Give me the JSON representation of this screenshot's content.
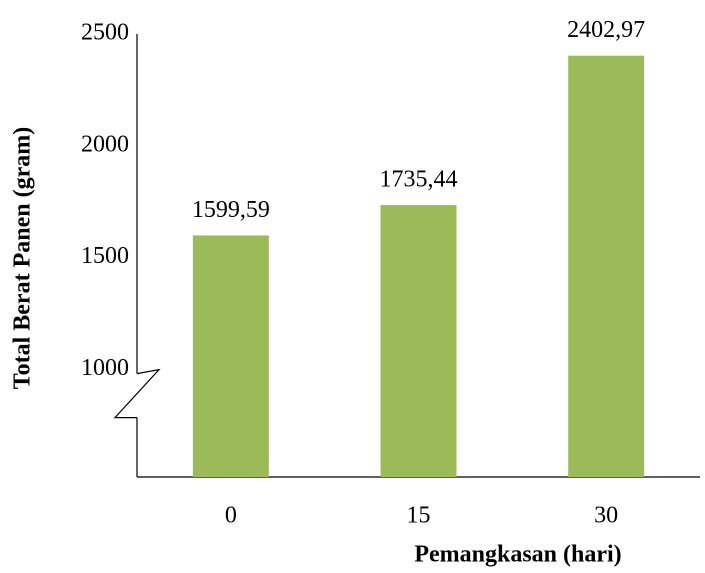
{
  "chart_data": {
    "type": "bar",
    "categories": [
      "0",
      "15",
      "30"
    ],
    "values": [
      1599.59,
      1735.44,
      2402.97
    ],
    "value_labels": [
      "1599,59",
      "1735,44",
      "2402,97"
    ],
    "color": "#9bbb59",
    "ylim": [
      520,
      2500
    ],
    "yticks": [
      1000,
      1500,
      2000,
      2500
    ],
    "axis_break": 1000,
    "x_label": "Pemangkasan (hari)",
    "y_label": "Total Berat Panen (gram)"
  }
}
